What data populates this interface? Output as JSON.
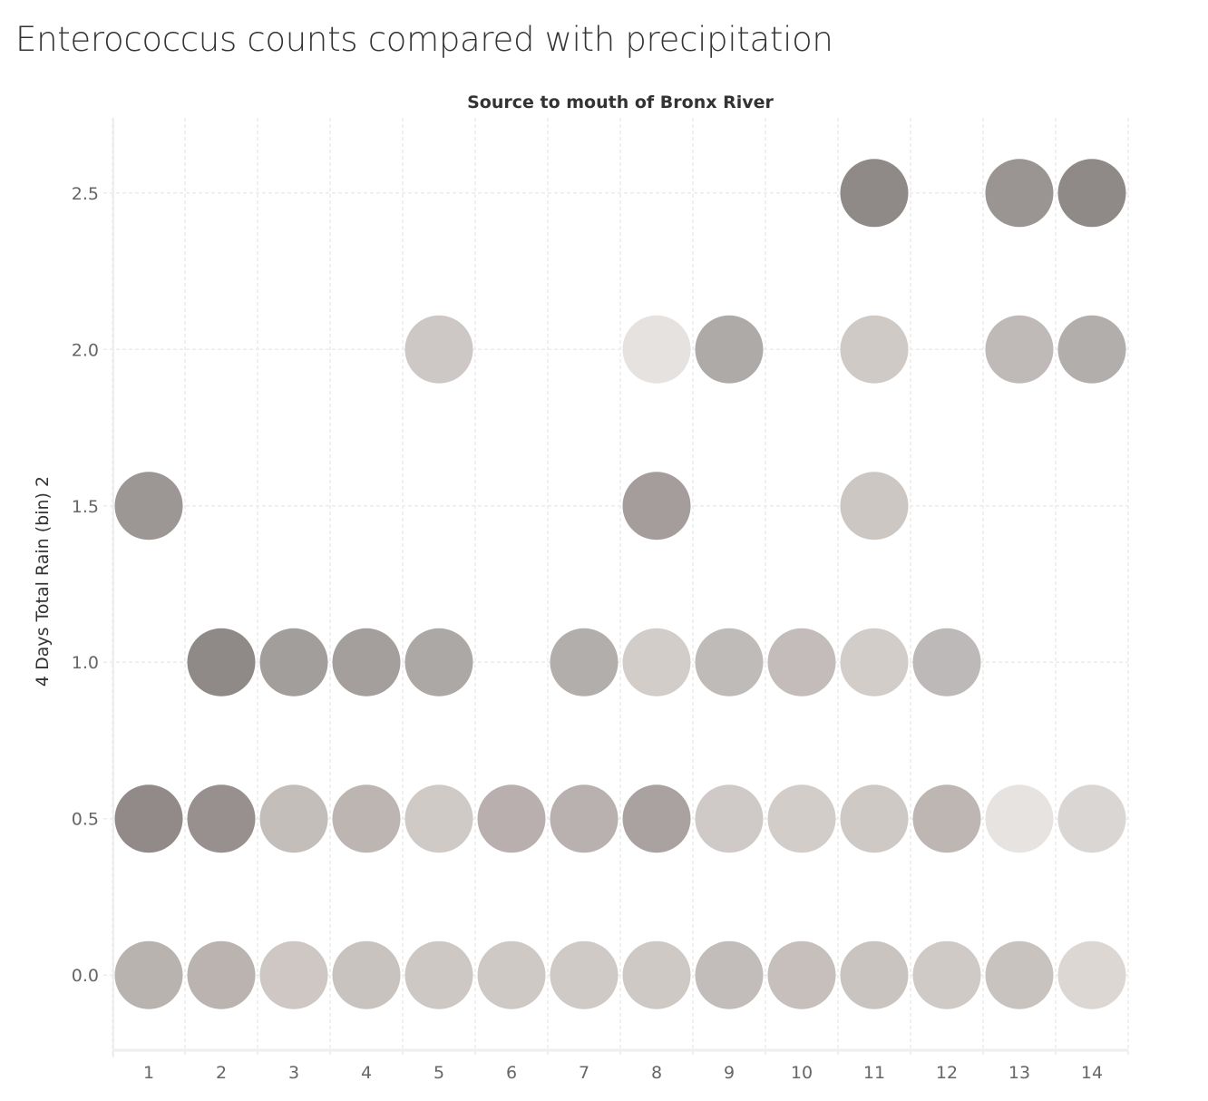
{
  "title": "Enterococcus counts compared with precipitation",
  "chart_data": {
    "type": "scatter",
    "title": "Enterococcus counts compared with precipitation",
    "subtitle": "Source to mouth of Bronx River",
    "xlabel": "",
    "ylabel": "4 Days Total Rain (bin) 2",
    "x_ticks": [
      "1",
      "2",
      "3",
      "4",
      "5",
      "6",
      "7",
      "8",
      "9",
      "10",
      "11",
      "12",
      "13",
      "14"
    ],
    "y_ticks": [
      "0.0",
      "0.5",
      "1.0",
      "1.5",
      "2.0",
      "2.5"
    ],
    "xlim": [
      0.5,
      14.5
    ],
    "ylim": [
      -0.24,
      2.74
    ],
    "grid": true,
    "color_encoding": "darker gray = higher Enterococcus count",
    "points": [
      {
        "x": 11,
        "y": 2.5,
        "color": "#8f8a87"
      },
      {
        "x": 13,
        "y": 2.5,
        "color": "#9a9592"
      },
      {
        "x": 14,
        "y": 2.5,
        "color": "#8f8a87"
      },
      {
        "x": 5,
        "y": 2.0,
        "color": "#cdc8c6"
      },
      {
        "x": 8,
        "y": 2.0,
        "color": "#e6e2e0"
      },
      {
        "x": 9,
        "y": 2.0,
        "color": "#aeaaa8"
      },
      {
        "x": 11,
        "y": 2.0,
        "color": "#d0cac7"
      },
      {
        "x": 13,
        "y": 2.0,
        "color": "#bfbab8"
      },
      {
        "x": 14,
        "y": 2.0,
        "color": "#b2aeab"
      },
      {
        "x": 1,
        "y": 1.5,
        "color": "#9c9694"
      },
      {
        "x": 8,
        "y": 1.5,
        "color": "#a59d9b"
      },
      {
        "x": 11,
        "y": 1.5,
        "color": "#cdc7c4"
      },
      {
        "x": 2,
        "y": 1.0,
        "color": "#8f8a88"
      },
      {
        "x": 3,
        "y": 1.0,
        "color": "#a29e9c"
      },
      {
        "x": 4,
        "y": 1.0,
        "color": "#a49f9d"
      },
      {
        "x": 5,
        "y": 1.0,
        "color": "#aca8a6"
      },
      {
        "x": 7,
        "y": 1.0,
        "color": "#b2aeac"
      },
      {
        "x": 8,
        "y": 1.0,
        "color": "#d3cdca"
      },
      {
        "x": 9,
        "y": 1.0,
        "color": "#bfbbb9"
      },
      {
        "x": 10,
        "y": 1.0,
        "color": "#c4bcba"
      },
      {
        "x": 11,
        "y": 1.0,
        "color": "#d3cdca"
      },
      {
        "x": 12,
        "y": 1.0,
        "color": "#bdb9b8"
      },
      {
        "x": 1,
        "y": 0.5,
        "color": "#928a88"
      },
      {
        "x": 2,
        "y": 0.5,
        "color": "#98908e"
      },
      {
        "x": 3,
        "y": 0.5,
        "color": "#c4beba"
      },
      {
        "x": 4,
        "y": 0.5,
        "color": "#bcb5b2"
      },
      {
        "x": 5,
        "y": 0.5,
        "color": "#d0cac7"
      },
      {
        "x": 6,
        "y": 0.5,
        "color": "#b8afae"
      },
      {
        "x": 7,
        "y": 0.5,
        "color": "#b9b1af"
      },
      {
        "x": 8,
        "y": 0.5,
        "color": "#aaa2a0"
      },
      {
        "x": 9,
        "y": 0.5,
        "color": "#cfcac7"
      },
      {
        "x": 10,
        "y": 0.5,
        "color": "#d3cdca"
      },
      {
        "x": 11,
        "y": 0.5,
        "color": "#cfc9c6"
      },
      {
        "x": 12,
        "y": 0.5,
        "color": "#bdb6b3"
      },
      {
        "x": 13,
        "y": 0.5,
        "color": "#e7e3e1"
      },
      {
        "x": 14,
        "y": 0.5,
        "color": "#dad6d4"
      },
      {
        "x": 1,
        "y": 0.0,
        "color": "#b9b3b0"
      },
      {
        "x": 2,
        "y": 0.0,
        "color": "#bab3b0"
      },
      {
        "x": 3,
        "y": 0.0,
        "color": "#cec7c4"
      },
      {
        "x": 4,
        "y": 0.0,
        "color": "#c9c3c0"
      },
      {
        "x": 5,
        "y": 0.0,
        "color": "#cec8c5"
      },
      {
        "x": 6,
        "y": 0.0,
        "color": "#cfc9c6"
      },
      {
        "x": 7,
        "y": 0.0,
        "color": "#d0cac7"
      },
      {
        "x": 8,
        "y": 0.0,
        "color": "#cfc9c6"
      },
      {
        "x": 9,
        "y": 0.0,
        "color": "#c2bdbb"
      },
      {
        "x": 10,
        "y": 0.0,
        "color": "#c7bfbc"
      },
      {
        "x": 11,
        "y": 0.0,
        "color": "#cac4c1"
      },
      {
        "x": 12,
        "y": 0.0,
        "color": "#d0cac7"
      },
      {
        "x": 13,
        "y": 0.0,
        "color": "#c9c3c0"
      },
      {
        "x": 14,
        "y": 0.0,
        "color": "#ddd7d4"
      }
    ]
  }
}
